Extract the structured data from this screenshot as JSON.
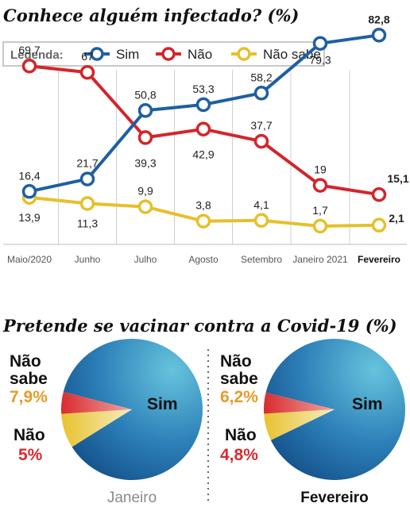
{
  "chart_data": [
    {
      "type": "line",
      "title": "Conhece alguém infectado? (%)",
      "legend_title": "Legenda:",
      "legend_position": "top",
      "categories": [
        "Maio/2020",
        "Junho",
        "Julho",
        "Agosto",
        "Setembro",
        "Janeiro 2021",
        "Fevereiro"
      ],
      "ylim": [
        0,
        90
      ],
      "grid": false,
      "series": [
        {
          "name": "Sim",
          "color": "#1f5fa2",
          "values": [
            16.4,
            21.7,
            50.8,
            53.3,
            58.2,
            79.3,
            82.8
          ],
          "labels": [
            "16,4",
            "21,7",
            "50,8",
            "53,3",
            "58,2",
            "79,3",
            "82,8"
          ]
        },
        {
          "name": "Não",
          "color": "#d3252b",
          "values": [
            69.7,
            67,
            39.3,
            42.9,
            37.7,
            19,
            15.1
          ],
          "labels": [
            "69,7",
            "67",
            "39,3",
            "42,9",
            "37,7",
            "19",
            "15,1"
          ]
        },
        {
          "name": "Não sabe",
          "color": "#e6c02a",
          "values": [
            13.9,
            11.3,
            9.9,
            3.8,
            4.1,
            1.7,
            2.1
          ],
          "labels": [
            "13,9",
            "11,3",
            "9,9",
            "3,8",
            "4,1",
            "1,7",
            "2,1"
          ]
        }
      ]
    },
    {
      "type": "pie",
      "title": "Pretende se vacinar contra a Covid-19 (%)",
      "name": "Janeiro",
      "slices": [
        {
          "name": "Sim",
          "label": "Sim",
          "color": "#1f6fae"
        },
        {
          "name": "Não",
          "value": 5,
          "label": "5%",
          "color": "#d82b30"
        },
        {
          "name": "Não sabe",
          "value": 7.9,
          "label": "7,9%",
          "color": "#e8c22e"
        }
      ]
    },
    {
      "type": "pie",
      "name": "Fevereiro",
      "slices": [
        {
          "name": "Sim",
          "label": "Sim",
          "color": "#1f6fae"
        },
        {
          "name": "Não",
          "value": 4.8,
          "label": "4,8%",
          "color": "#d82b30"
        },
        {
          "name": "Não sabe",
          "value": 6.2,
          "label": "6,2%",
          "color": "#e8c22e"
        }
      ]
    }
  ],
  "pie_labels": {
    "nao_sabe_line1": "Não",
    "nao_sabe_line2": "sabe",
    "nao": "Não",
    "sim": "Sim"
  }
}
